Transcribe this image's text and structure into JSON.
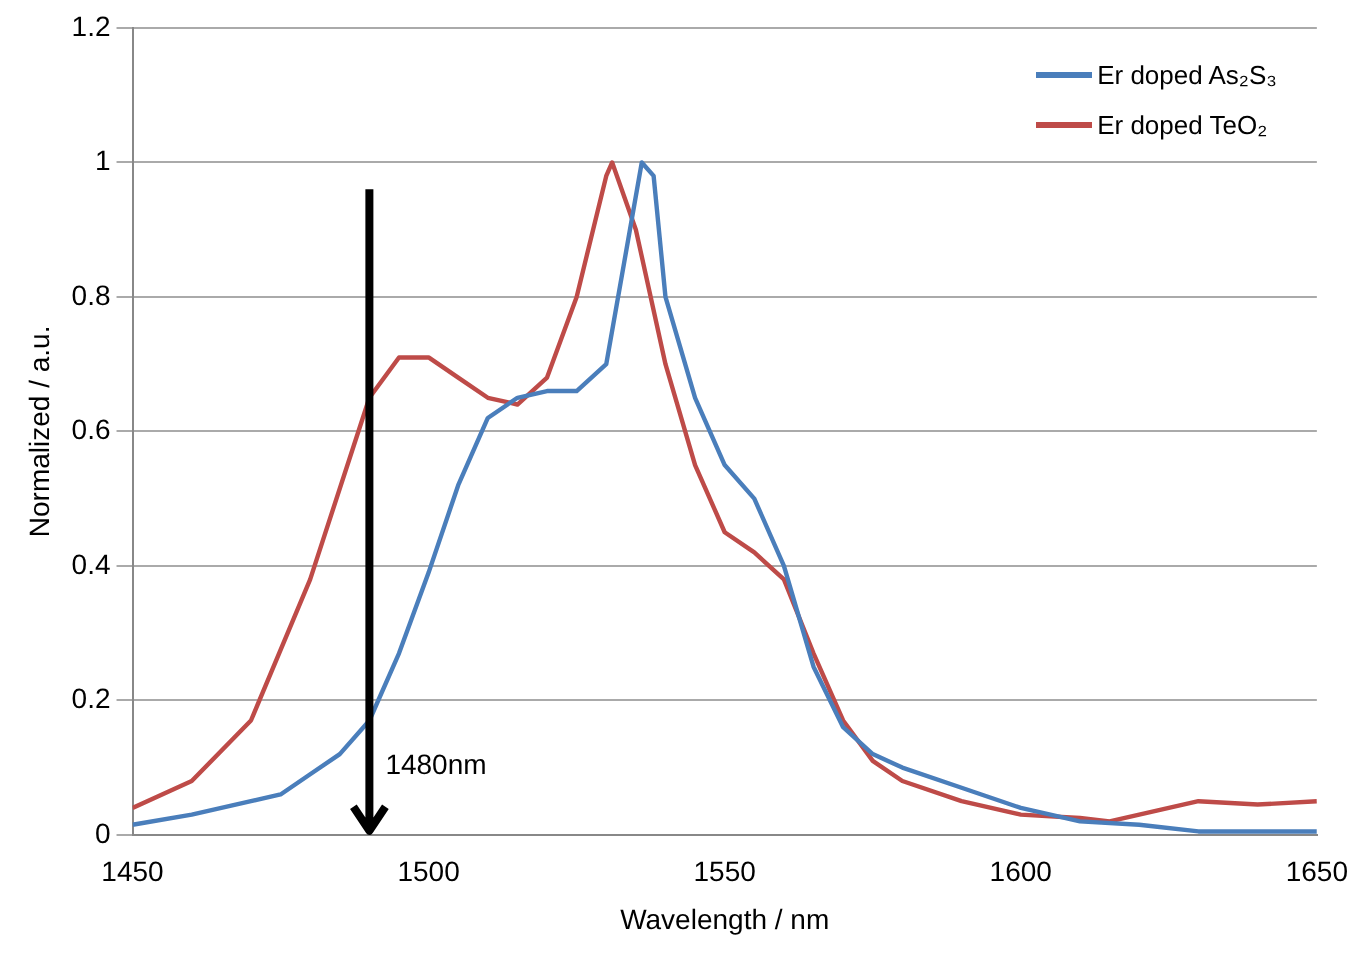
{
  "chart_data": {
    "type": "line",
    "xlabel": "Wavelength / nm",
    "ylabel": "Normalized / a.u.",
    "xlim": [
      1450,
      1650
    ],
    "xticks": [
      1450,
      1500,
      1550,
      1600,
      1650
    ],
    "ylim": [
      0,
      1.2
    ],
    "yticks": [
      0,
      0.2,
      0.4,
      0.6,
      0.8,
      1,
      1.2
    ],
    "grid": "y",
    "legend": "top right",
    "marker": "none",
    "line_style": "solid",
    "ref_lines": [
      {
        "axis": "x",
        "value": 1490,
        "label": "1480nm",
        "color": "#000000"
      }
    ],
    "series": [
      {
        "name": "Er doped As₂S₃",
        "color": "#4a7ebb",
        "x": [
          1450,
          1460,
          1465,
          1470,
          1475,
          1480,
          1485,
          1490,
          1495,
          1500,
          1505,
          1510,
          1515,
          1520,
          1525,
          1530,
          1533,
          1536,
          1538,
          1540,
          1545,
          1550,
          1555,
          1560,
          1565,
          1570,
          1575,
          1580,
          1590,
          1600,
          1610,
          1620,
          1630,
          1640,
          1650
        ],
        "values": [
          0.015,
          0.03,
          0.04,
          0.05,
          0.06,
          0.09,
          0.12,
          0.17,
          0.27,
          0.39,
          0.52,
          0.62,
          0.65,
          0.66,
          0.66,
          0.7,
          0.85,
          1.0,
          0.98,
          0.8,
          0.65,
          0.55,
          0.5,
          0.4,
          0.25,
          0.16,
          0.12,
          0.1,
          0.07,
          0.04,
          0.02,
          0.015,
          0.005,
          0.005,
          0.005
        ]
      },
      {
        "name": "Er doped TeO₂",
        "color": "#be4b48",
        "x": [
          1450,
          1460,
          1470,
          1480,
          1490,
          1495,
          1500,
          1505,
          1510,
          1515,
          1520,
          1525,
          1530,
          1531,
          1535,
          1540,
          1545,
          1550,
          1555,
          1560,
          1565,
          1570,
          1575,
          1580,
          1590,
          1600,
          1610,
          1615,
          1620,
          1630,
          1640,
          1650
        ],
        "values": [
          0.04,
          0.08,
          0.17,
          0.38,
          0.65,
          0.71,
          0.71,
          0.68,
          0.65,
          0.64,
          0.68,
          0.8,
          0.98,
          1.0,
          0.9,
          0.7,
          0.55,
          0.45,
          0.42,
          0.38,
          0.27,
          0.17,
          0.11,
          0.08,
          0.05,
          0.03,
          0.025,
          0.02,
          0.03,
          0.05,
          0.045,
          0.05
        ]
      }
    ]
  }
}
